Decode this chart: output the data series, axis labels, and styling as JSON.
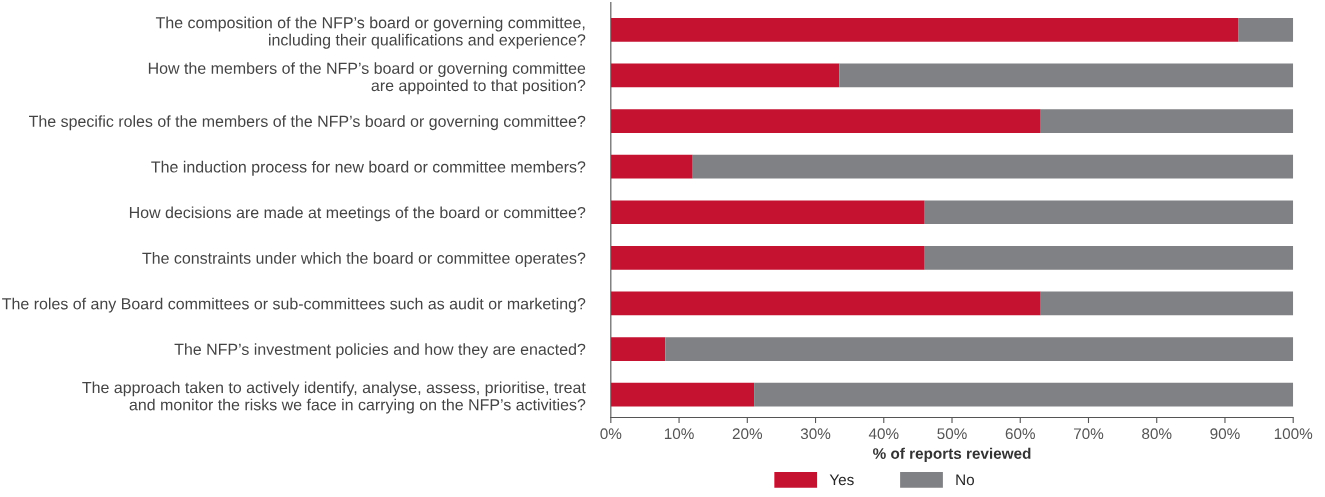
{
  "chart_data": {
    "type": "bar",
    "orientation": "horizontal",
    "stacked": true,
    "categories": [
      "The composition of the NFP’s board or governing committee,\nincluding their qualifications and experience?",
      "How the members of the NFP’s board or governing committee\nare appointed to that position?",
      "The specific roles of the members of the NFP’s board or governing committee?",
      "The induction process for new board or committee members?",
      "How decisions are made at meetings of the board or committee?",
      "The constraints under which the board or committee operates?",
      "The roles of any Board committees or sub-committees such as audit or marketing?",
      "The NFP’s investment policies and how they are enacted?",
      "The approach taken to actively identify, analyse, assess, prioritise, treat\nand monitor the risks we face in carrying on the NFP’s activities?"
    ],
    "series": [
      {
        "name": "Yes",
        "color": "#c41230",
        "values": [
          92,
          33.5,
          63,
          12,
          46,
          46,
          63,
          8,
          21
        ]
      },
      {
        "name": "No",
        "color": "#808184",
        "values": [
          8,
          66.5,
          37,
          88,
          54,
          54,
          37,
          92,
          79
        ]
      }
    ],
    "xlabel": "% of reports reviewed",
    "xlim": [
      0,
      100
    ],
    "xticks": [
      {
        "value": 0,
        "label": "0%"
      },
      {
        "value": 10,
        "label": "10%"
      },
      {
        "value": 20,
        "label": "20%"
      },
      {
        "value": 30,
        "label": "30%"
      },
      {
        "value": 40,
        "label": "40%"
      },
      {
        "value": 50,
        "label": "50%"
      },
      {
        "value": 60,
        "label": "60%"
      },
      {
        "value": 70,
        "label": "70%"
      },
      {
        "value": 80,
        "label": "80%"
      },
      {
        "value": 90,
        "label": "90%"
      },
      {
        "value": 100,
        "label": "100%"
      }
    ],
    "grid": false,
    "legend": "bottom"
  }
}
